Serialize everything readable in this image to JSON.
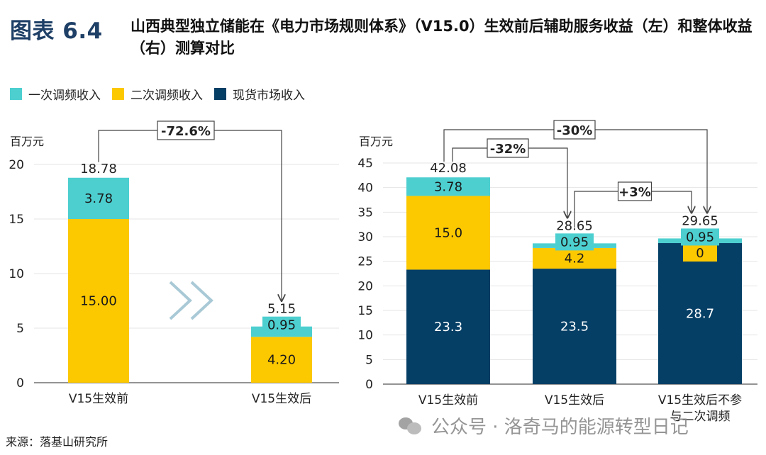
{
  "figure_number": "图表 6.4",
  "figure_title": "山西典型独立储能在《电力市场规则体系》（V15.0）生效前后辅助服务收益（左）和整体收益（右）测算对比",
  "colors": {
    "primary_freq": "#4dcfd0",
    "secondary_freq": "#fcc800",
    "spot": "#063f66",
    "title_blue": "#1e3f66",
    "arrow_gray": "#a9c9d6"
  },
  "legend": [
    {
      "label": "一次调频收入",
      "color": "#4dcfd0"
    },
    {
      "label": "二次调频收入",
      "color": "#fcc800"
    },
    {
      "label": "现货市场收入",
      "color": "#063f66"
    }
  ],
  "chart_data": [
    {
      "type": "bar",
      "stacked": true,
      "title": "辅助服务收益（左）",
      "ylabel": "百万元",
      "ylim": [
        0,
        20
      ],
      "yticks": [
        0,
        5,
        10,
        15,
        20
      ],
      "categories": [
        "V15生效前",
        "V15生效后"
      ],
      "series": [
        {
          "name": "二次调频收入",
          "values": [
            15.0,
            4.2
          ],
          "labels": [
            "15.00",
            "4.20"
          ]
        },
        {
          "name": "一次调频收入",
          "values": [
            3.78,
            0.95
          ],
          "labels": [
            "3.78",
            "0.95"
          ]
        }
      ],
      "totals": [
        "18.78",
        "5.15"
      ],
      "annotations": [
        {
          "from": 0,
          "to": 1,
          "text": "-72.6%"
        }
      ]
    },
    {
      "type": "bar",
      "stacked": true,
      "title": "整体收益（右）",
      "ylabel": "百万元",
      "ylim": [
        0,
        45
      ],
      "yticks": [
        0,
        5,
        10,
        15,
        20,
        25,
        30,
        35,
        40,
        45
      ],
      "categories": [
        "V15生效前",
        "V15生效后",
        "V15生效后不参与二次调频"
      ],
      "series": [
        {
          "name": "现货市场收入",
          "values": [
            23.3,
            23.5,
            28.7
          ],
          "labels": [
            "23.3",
            "23.5",
            "28.7"
          ]
        },
        {
          "name": "二次调频收入",
          "values": [
            15.0,
            4.2,
            0
          ],
          "labels": [
            "15.0",
            "4.2",
            "0"
          ]
        },
        {
          "name": "一次调频收入",
          "values": [
            3.78,
            0.95,
            0.95
          ],
          "labels": [
            "3.78",
            "0.95",
            "0.95"
          ]
        }
      ],
      "totals": [
        "42.08",
        "28.65",
        "29.65"
      ],
      "annotations": [
        {
          "from": 0,
          "to": 1,
          "text": "-32%"
        },
        {
          "from": 1,
          "to": 2,
          "text": "+3%"
        },
        {
          "from": 0,
          "to": 2,
          "text": "-30%"
        }
      ]
    }
  ],
  "source": "来源：落基山研究所",
  "watermark": "公众号 · 洛奇马的能源转型日记"
}
